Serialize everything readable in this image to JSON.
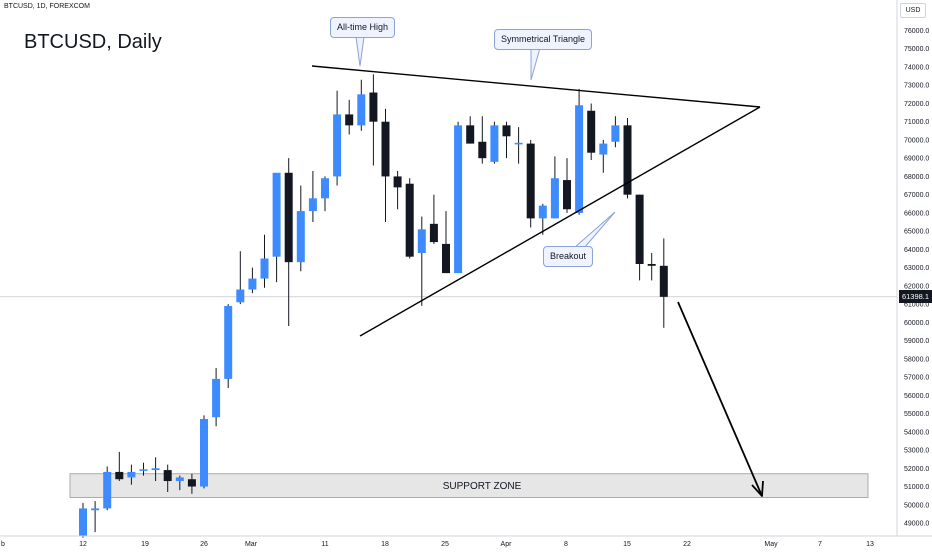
{
  "header": {
    "symbol_line": "BTCUSD, 1D, FOREXCOM",
    "title": "BTCUSD, Daily",
    "currency": "USD"
  },
  "annotations": {
    "ath": "All-time High",
    "triangle": "Symmetrical Triangle",
    "breakout": "Breakout",
    "support": "SUPPORT ZONE"
  },
  "last_price": "61398.1",
  "colors": {
    "up": "#3d8bff",
    "down": "#131722",
    "line": "#000000",
    "zone_fill": "#e6e6e6"
  },
  "chart_data": {
    "type": "candlestick",
    "x_ticks": [
      "b",
      "12",
      "19",
      "26",
      "Mar",
      "11",
      "18",
      "25",
      "Apr",
      "8",
      "15",
      "22",
      "May",
      "7",
      "13"
    ],
    "y_ticks": [
      49000,
      50000,
      51000,
      52000,
      53000,
      54000,
      55000,
      56000,
      57000,
      58000,
      59000,
      60000,
      61000,
      62000,
      63000,
      64000,
      65000,
      66000,
      67000,
      68000,
      69000,
      70000,
      71000,
      72000,
      73000,
      74000,
      75000,
      76000
    ],
    "ylim": [
      48500,
      76700
    ],
    "support_zone": [
      50400,
      51700
    ],
    "candles": [
      {
        "o": 48300,
        "h": 50100,
        "l": 48200,
        "c": 49800
      },
      {
        "o": 49700,
        "h": 50200,
        "l": 48500,
        "c": 49800
      },
      {
        "o": 49800,
        "h": 52100,
        "l": 49700,
        "c": 51800
      },
      {
        "o": 51800,
        "h": 52900,
        "l": 51300,
        "c": 51400
      },
      {
        "o": 51500,
        "h": 52200,
        "l": 51100,
        "c": 51800
      },
      {
        "o": 51900,
        "h": 52300,
        "l": 51600,
        "c": 51900
      },
      {
        "o": 51900,
        "h": 52600,
        "l": 51300,
        "c": 52000
      },
      {
        "o": 51900,
        "h": 52200,
        "l": 50700,
        "c": 51300
      },
      {
        "o": 51300,
        "h": 51600,
        "l": 50800,
        "c": 51500
      },
      {
        "o": 51400,
        "h": 51700,
        "l": 50600,
        "c": 51000
      },
      {
        "o": 51000,
        "h": 54900,
        "l": 50900,
        "c": 54700
      },
      {
        "o": 54800,
        "h": 57500,
        "l": 54300,
        "c": 56900
      },
      {
        "o": 56900,
        "h": 61000,
        "l": 56400,
        "c": 60900
      },
      {
        "o": 61100,
        "h": 63900,
        "l": 61000,
        "c": 61800
      },
      {
        "o": 61800,
        "h": 63000,
        "l": 61600,
        "c": 62400
      },
      {
        "o": 62400,
        "h": 64800,
        "l": 61900,
        "c": 63500
      },
      {
        "o": 63600,
        "h": 68100,
        "l": 62200,
        "c": 68200
      },
      {
        "o": 68200,
        "h": 69000,
        "l": 59800,
        "c": 63300
      },
      {
        "o": 63300,
        "h": 67500,
        "l": 62800,
        "c": 66100
      },
      {
        "o": 66100,
        "h": 68300,
        "l": 65500,
        "c": 66800
      },
      {
        "o": 66800,
        "h": 68000,
        "l": 66100,
        "c": 67900
      },
      {
        "o": 68000,
        "h": 72700,
        "l": 67500,
        "c": 71400
      },
      {
        "o": 71400,
        "h": 72200,
        "l": 70300,
        "c": 70800
      },
      {
        "o": 70800,
        "h": 73300,
        "l": 70500,
        "c": 72500
      },
      {
        "o": 72600,
        "h": 73600,
        "l": 68600,
        "c": 71000
      },
      {
        "o": 71000,
        "h": 71700,
        "l": 65500,
        "c": 68000
      },
      {
        "o": 68000,
        "h": 68300,
        "l": 66200,
        "c": 67400
      },
      {
        "o": 67600,
        "h": 67900,
        "l": 63500,
        "c": 63600
      },
      {
        "o": 63800,
        "h": 65800,
        "l": 60900,
        "c": 65100
      },
      {
        "o": 65400,
        "h": 67000,
        "l": 64300,
        "c": 64400
      },
      {
        "o": 64300,
        "h": 66100,
        "l": 62700,
        "c": 62700
      },
      {
        "o": 62700,
        "h": 71000,
        "l": 62700,
        "c": 70800
      },
      {
        "o": 70800,
        "h": 71300,
        "l": 69800,
        "c": 69800
      },
      {
        "o": 69900,
        "h": 71300,
        "l": 68700,
        "c": 69000
      },
      {
        "o": 68800,
        "h": 71000,
        "l": 68700,
        "c": 70800
      },
      {
        "o": 70800,
        "h": 71000,
        "l": 69000,
        "c": 70200
      },
      {
        "o": 69800,
        "h": 70700,
        "l": 68700,
        "c": 69800
      },
      {
        "o": 69800,
        "h": 70000,
        "l": 65200,
        "c": 65700
      },
      {
        "o": 65700,
        "h": 66500,
        "l": 64800,
        "c": 66400
      },
      {
        "o": 65700,
        "h": 69100,
        "l": 65700,
        "c": 67900
      },
      {
        "o": 67800,
        "h": 69000,
        "l": 66000,
        "c": 66200
      },
      {
        "o": 66000,
        "h": 72800,
        "l": 65900,
        "c": 71900
      },
      {
        "o": 71600,
        "h": 72000,
        "l": 68900,
        "c": 69300
      },
      {
        "o": 69200,
        "h": 70000,
        "l": 68200,
        "c": 69800
      },
      {
        "o": 69900,
        "h": 71300,
        "l": 69600,
        "c": 70800
      },
      {
        "o": 70800,
        "h": 71200,
        "l": 66800,
        "c": 67000
      },
      {
        "o": 67000,
        "h": 67000,
        "l": 62300,
        "c": 63200
      },
      {
        "o": 63200,
        "h": 63800,
        "l": 62300,
        "c": 63100
      },
      {
        "o": 63100,
        "h": 64600,
        "l": 59700,
        "c": 61400
      }
    ]
  }
}
